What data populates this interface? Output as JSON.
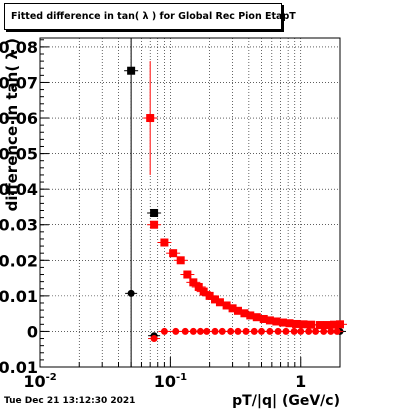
{
  "title": "Fitted difference in tan( λ ) for Global Rec Pion EtapT",
  "timestamp": "Tue Dec 21 13:12:30 2021",
  "chart_data": {
    "type": "scatter",
    "title": "Fitted difference in tan( λ ) for Global Rec Pion EtapT",
    "xlabel": "pT/|q| (GeV/c)",
    "ylabel": "difference in tan( λ )",
    "xscale": "log",
    "xlim": [
      0.01,
      2.0
    ],
    "ylim": [
      -0.01,
      0.0825
    ],
    "grid": true,
    "x_ticks": [
      {
        "label": "10",
        "sup": "-2",
        "x": 0.01
      },
      {
        "label": "10",
        "sup": "-1",
        "x": 0.1
      },
      {
        "label": "1",
        "sup": "",
        "x": 1.0
      }
    ],
    "y_ticks": [
      {
        "label": "-0.01",
        "y": -0.01
      },
      {
        "label": "0",
        "y": 0.0
      },
      {
        "label": "0.01",
        "y": 0.01
      },
      {
        "label": "0.02",
        "y": 0.02
      },
      {
        "label": "0.03",
        "y": 0.03
      },
      {
        "label": "0.04",
        "y": 0.04
      },
      {
        "label": "0.05",
        "y": 0.05
      },
      {
        "label": "0.06",
        "y": 0.06
      },
      {
        "label": "0.07",
        "y": 0.07
      },
      {
        "label": "0.08",
        "y": 0.08
      }
    ],
    "vertical_line_x": 0.05,
    "series": [
      {
        "color": "#000000",
        "marker": "square",
        "points": [
          {
            "x": 0.05,
            "y": 0.0733
          },
          {
            "x": 0.075,
            "y": 0.0333
          }
        ]
      },
      {
        "color": "#000000",
        "marker": "circle",
        "points": [
          {
            "x": 0.05,
            "y": 0.0107
          },
          {
            "x": 0.075,
            "y": -0.0012
          },
          {
            "x": 2.0,
            "y": 0.0
          }
        ]
      },
      {
        "color": "#ff0000",
        "marker": "square",
        "points": [
          {
            "x": 0.07,
            "y": 0.06,
            "yerr": 0.016
          },
          {
            "x": 0.075,
            "y": 0.03
          },
          {
            "x": 0.09,
            "y": 0.025
          },
          {
            "x": 0.105,
            "y": 0.022
          },
          {
            "x": 0.12,
            "y": 0.02
          },
          {
            "x": 0.135,
            "y": 0.016
          },
          {
            "x": 0.15,
            "y": 0.0138
          },
          {
            "x": 0.165,
            "y": 0.0125
          },
          {
            "x": 0.18,
            "y": 0.0112
          },
          {
            "x": 0.2,
            "y": 0.01
          },
          {
            "x": 0.22,
            "y": 0.009
          },
          {
            "x": 0.24,
            "y": 0.0082
          },
          {
            "x": 0.27,
            "y": 0.0073
          },
          {
            "x": 0.3,
            "y": 0.0065
          },
          {
            "x": 0.33,
            "y": 0.0058
          },
          {
            "x": 0.37,
            "y": 0.0051
          },
          {
            "x": 0.41,
            "y": 0.0045
          },
          {
            "x": 0.46,
            "y": 0.004
          },
          {
            "x": 0.52,
            "y": 0.0035
          },
          {
            "x": 0.58,
            "y": 0.0031
          },
          {
            "x": 0.65,
            "y": 0.0028
          },
          {
            "x": 0.73,
            "y": 0.0025
          },
          {
            "x": 0.82,
            "y": 0.0023
          },
          {
            "x": 0.92,
            "y": 0.0021
          },
          {
            "x": 1.05,
            "y": 0.002
          },
          {
            "x": 1.2,
            "y": 0.0019
          },
          {
            "x": 1.4,
            "y": 0.0018
          },
          {
            "x": 1.6,
            "y": 0.0018
          },
          {
            "x": 1.8,
            "y": 0.0019
          },
          {
            "x": 2.0,
            "y": 0.002
          }
        ]
      },
      {
        "color": "#ff0000",
        "marker": "circle",
        "points": [
          {
            "x": 0.075,
            "y": -0.002
          },
          {
            "x": 0.09,
            "y": 0.0
          },
          {
            "x": 0.11,
            "y": 0.0
          },
          {
            "x": 0.13,
            "y": 0.0
          },
          {
            "x": 0.15,
            "y": 0.0
          },
          {
            "x": 0.17,
            "y": 0.0
          },
          {
            "x": 0.19,
            "y": 0.0
          },
          {
            "x": 0.22,
            "y": 0.0
          },
          {
            "x": 0.25,
            "y": 0.0
          },
          {
            "x": 0.29,
            "y": 0.0
          },
          {
            "x": 0.33,
            "y": 0.0
          },
          {
            "x": 0.38,
            "y": 0.0
          },
          {
            "x": 0.44,
            "y": 0.0
          },
          {
            "x": 0.5,
            "y": 0.0
          },
          {
            "x": 0.58,
            "y": 0.0
          },
          {
            "x": 0.67,
            "y": 0.0
          },
          {
            "x": 0.77,
            "y": 0.0
          },
          {
            "x": 0.89,
            "y": 0.0
          },
          {
            "x": 1.0,
            "y": 0.0
          },
          {
            "x": 1.15,
            "y": 0.0
          },
          {
            "x": 1.3,
            "y": 0.0
          },
          {
            "x": 1.5,
            "y": 0.0
          },
          {
            "x": 1.7,
            "y": 0.0
          },
          {
            "x": 1.9,
            "y": 0.0
          }
        ]
      }
    ]
  }
}
